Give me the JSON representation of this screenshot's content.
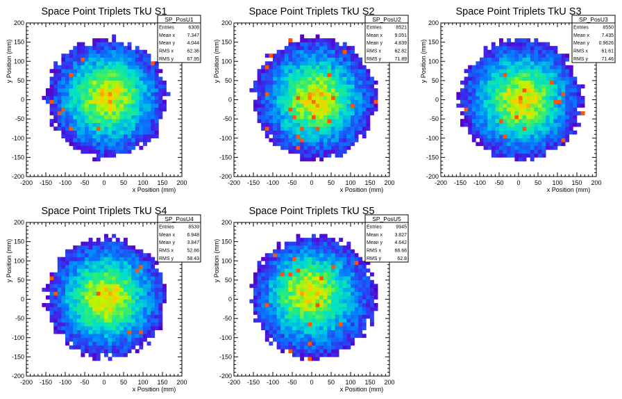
{
  "colors": {
    "palette_low": "#5a00c8",
    "palette_mid1": "#0080ff",
    "palette_mid2": "#00e8c8",
    "palette_mid3": "#c8f000",
    "palette_high": "#ff0000",
    "axis": "#000000",
    "background": "#ffffff"
  },
  "chart_data": [
    {
      "type": "heatmap",
      "title": "Space Point Triplets TkU S1",
      "xlabel": "x Position (mm)",
      "ylabel": "y Position (mm)",
      "xlim": [
        -200,
        200
      ],
      "ylim": [
        -200,
        200
      ],
      "xticks": [
        -200,
        -150,
        -100,
        -50,
        0,
        50,
        100,
        150,
        200
      ],
      "yticks": [
        -200,
        -150,
        -100,
        -50,
        0,
        50,
        100,
        150,
        200
      ],
      "stats": {
        "name": "SP_PosU1",
        "rows": [
          {
            "label": "Entries",
            "value": "6308"
          },
          {
            "label": "Mean x",
            "value": "7.347"
          },
          {
            "label": "Mean y",
            "value": "4.044"
          },
          {
            "label": "RMS x",
            "value": "62.36"
          },
          {
            "label": "RMS y",
            "value": "67.95"
          }
        ]
      },
      "distribution": {
        "center_x": 7,
        "center_y": 4,
        "radius": 155,
        "hot_x": 10,
        "hot_y": 10,
        "bin_width": 10,
        "peak_count": 23
      }
    },
    {
      "type": "heatmap",
      "title": "Space Point Triplets TkU S2",
      "xlabel": "x Position (mm)",
      "ylabel": "y Position (mm)",
      "xlim": [
        -200,
        200
      ],
      "ylim": [
        -200,
        200
      ],
      "xticks": [
        -200,
        -150,
        -100,
        -50,
        0,
        50,
        100,
        150,
        200
      ],
      "yticks": [
        -200,
        -150,
        -100,
        -50,
        0,
        50,
        100,
        150,
        200
      ],
      "stats": {
        "name": "SP_PosU2",
        "rows": [
          {
            "label": "Entries",
            "value": "8521"
          },
          {
            "label": "Mean x",
            "value": "9.051"
          },
          {
            "label": "Mean y",
            "value": "4.839"
          },
          {
            "label": "RMS x",
            "value": "62.82"
          },
          {
            "label": "RMS y",
            "value": "71.89"
          }
        ]
      },
      "distribution": {
        "center_x": 9,
        "center_y": 5,
        "radius": 158,
        "hot_x": 10,
        "hot_y": 0,
        "bin_width": 10,
        "peak_count": 27
      }
    },
    {
      "type": "heatmap",
      "title": "Space Point Triplets TkU S3",
      "xlabel": "x Position (mm)",
      "ylabel": "y Position (mm)",
      "xlim": [
        -200,
        200
      ],
      "ylim": [
        -200,
        200
      ],
      "xticks": [
        -200,
        -150,
        -100,
        -50,
        0,
        50,
        100,
        150,
        200
      ],
      "yticks": [
        -200,
        -150,
        -100,
        -50,
        0,
        50,
        100,
        150,
        200
      ],
      "stats": {
        "name": "SP_PosU3",
        "rows": [
          {
            "label": "Entries",
            "value": "8550"
          },
          {
            "label": "Mean x",
            "value": "7.435"
          },
          {
            "label": "Mean y",
            "value": "0.9626"
          },
          {
            "label": "RMS x",
            "value": "61.61"
          },
          {
            "label": "RMS y",
            "value": "71.46"
          }
        ]
      },
      "distribution": {
        "center_x": 7,
        "center_y": 1,
        "radius": 158,
        "hot_x": 10,
        "hot_y": 0,
        "bin_width": 10,
        "peak_count": 28
      }
    },
    {
      "type": "heatmap",
      "title": "Space Point Triplets TkU S4",
      "xlabel": "x Position (mm)",
      "ylabel": "y Position (mm)",
      "xlim": [
        -200,
        200
      ],
      "ylim": [
        -200,
        200
      ],
      "xticks": [
        -200,
        -150,
        -100,
        -50,
        0,
        50,
        100,
        150,
        200
      ],
      "yticks": [
        -200,
        -150,
        -100,
        -50,
        0,
        50,
        100,
        150,
        200
      ],
      "stats": {
        "name": "SP_PosU4",
        "rows": [
          {
            "label": "Entries",
            "value": "8539"
          },
          {
            "label": "Mean x",
            "value": "6.948"
          },
          {
            "label": "Mean y",
            "value": "3.847"
          },
          {
            "label": "RMS x",
            "value": "52.66"
          },
          {
            "label": "RMS y",
            "value": "58.43"
          }
        ]
      },
      "distribution": {
        "center_x": 7,
        "center_y": 4,
        "radius": 155,
        "hot_x": 5,
        "hot_y": 5,
        "bin_width": 10,
        "peak_count": 38
      }
    },
    {
      "type": "heatmap",
      "title": "Space Point Triplets TkU S5",
      "xlabel": "x Position (mm)",
      "ylabel": "y Position (mm)",
      "xlim": [
        -200,
        200
      ],
      "ylim": [
        -200,
        200
      ],
      "xticks": [
        -200,
        -150,
        -100,
        -50,
        0,
        50,
        100,
        150,
        200
      ],
      "yticks": [
        -200,
        -150,
        -100,
        -50,
        0,
        50,
        100,
        150,
        200
      ],
      "stats": {
        "name": "SP_PosU5",
        "rows": [
          {
            "label": "Entries",
            "value": "9945"
          },
          {
            "label": "Mean x",
            "value": "3.827"
          },
          {
            "label": "Mean y",
            "value": "4.642"
          },
          {
            "label": "RMS x",
            "value": "68.68"
          },
          {
            "label": "RMS y",
            "value": "62.8"
          }
        ]
      },
      "distribution": {
        "center_x": 4,
        "center_y": 5,
        "radius": 160,
        "hot_x": -10,
        "hot_y": 20,
        "bin_width": 10,
        "peak_count": 30
      }
    }
  ]
}
